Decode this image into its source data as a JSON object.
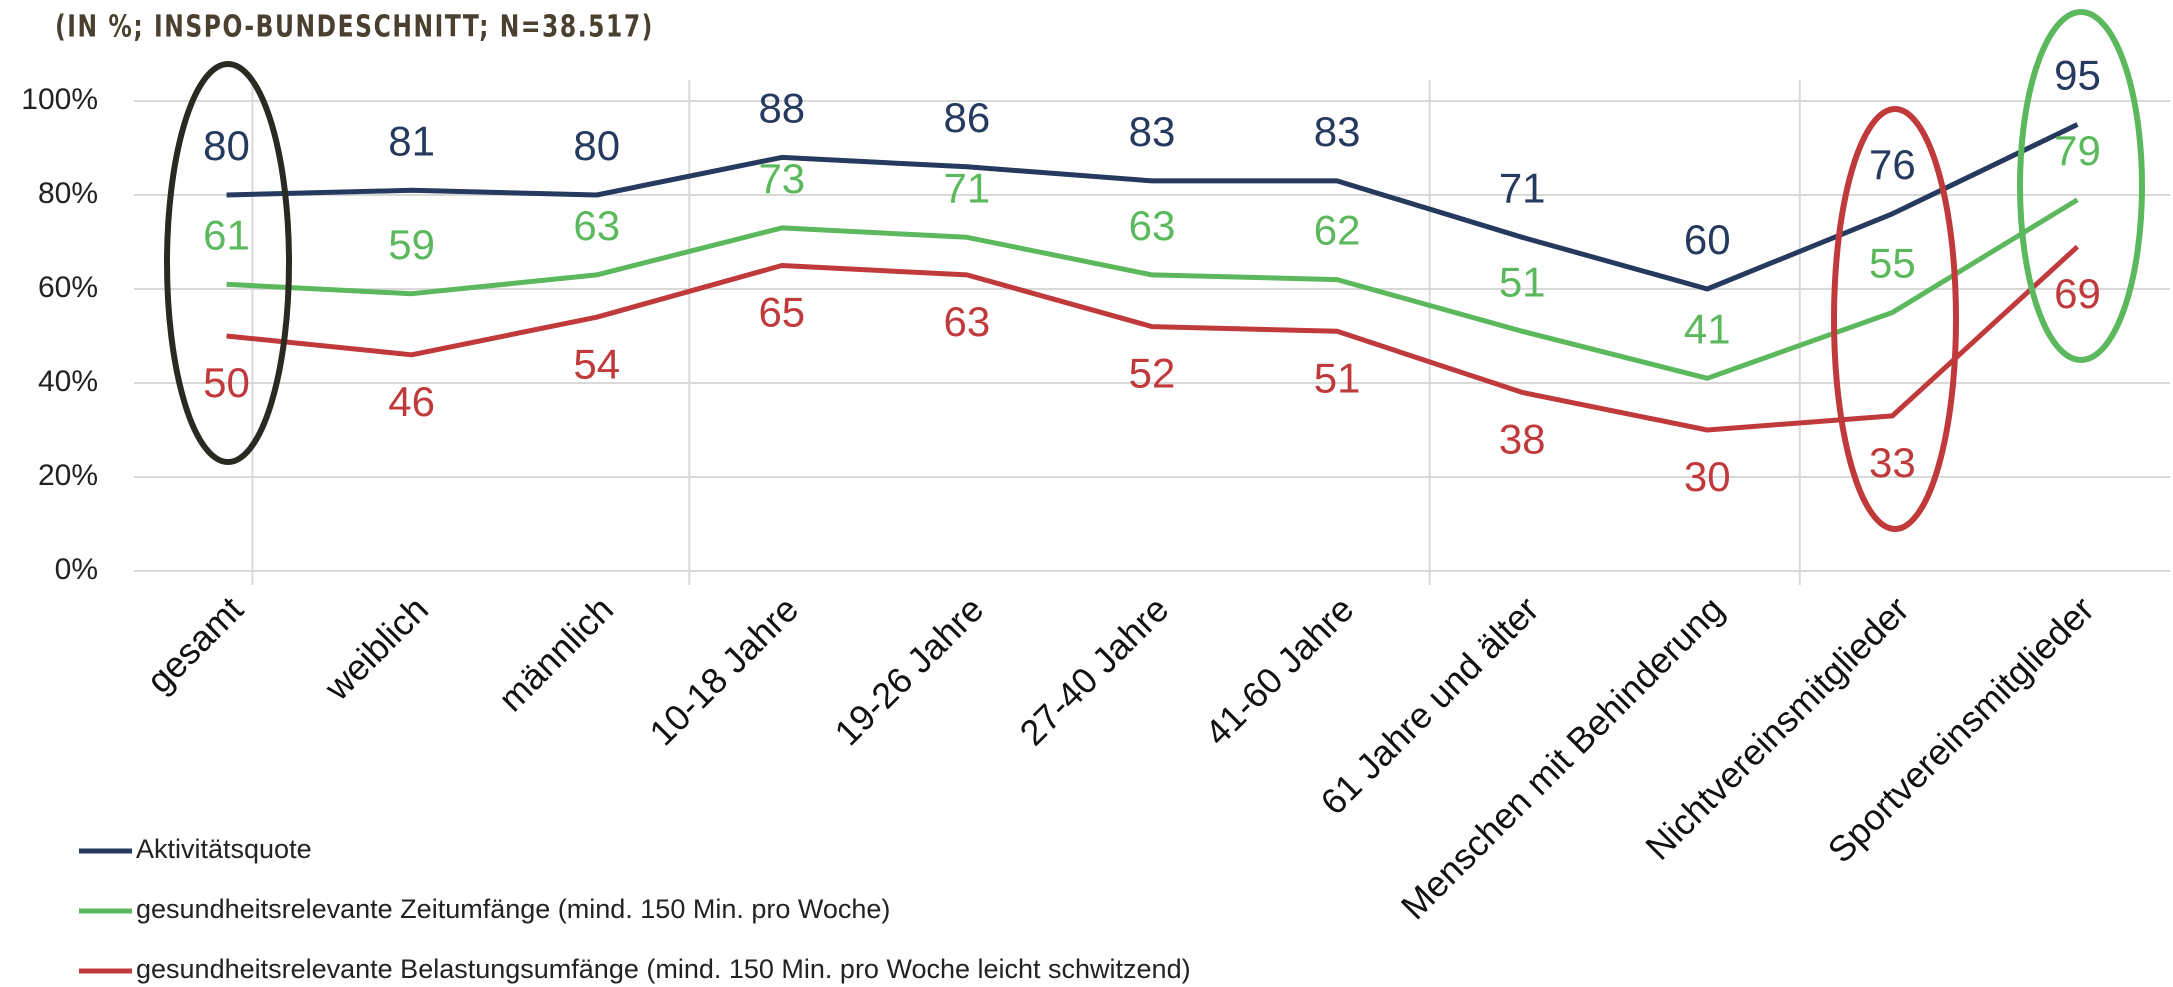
{
  "chart_data": {
    "type": "line",
    "title": "(IN %; INSPO-BUNDESCHNITT; N=38.517)",
    "categories": [
      "gesamt",
      "weiblich",
      "männlich",
      "10-18 Jahre",
      "19-26 Jahre",
      "27-40 Jahre",
      "41-60 Jahre",
      "61 Jahre und älter",
      "Menschen mit Behinderung",
      "Nichtvereinsmitglieder",
      "Sportvereinsmitglieder"
    ],
    "series": [
      {
        "name": "Aktivitätsquote",
        "color": "#253a5e",
        "values": [
          80,
          81,
          80,
          88,
          86,
          83,
          83,
          71,
          60,
          76,
          95
        ]
      },
      {
        "name": "gesundheitsrelevante Zeitumfänge (mind. 150 Min. pro Woche)",
        "color": "#5cb85c",
        "values": [
          61,
          59,
          63,
          73,
          71,
          63,
          62,
          51,
          41,
          55,
          79
        ]
      },
      {
        "name": "gesundheitsrelevante Belastungsumfänge (mind. 150 Min. pro Woche leicht schwitzend)",
        "color": "#c0393b",
        "values": [
          50,
          46,
          54,
          65,
          63,
          52,
          51,
          38,
          30,
          33,
          69
        ]
      }
    ],
    "ylim": [
      0,
      100
    ],
    "yticks": [
      {
        "value": 0,
        "label": "0%"
      },
      {
        "value": 20,
        "label": "20%"
      },
      {
        "value": 40,
        "label": "40%"
      },
      {
        "value": 60,
        "label": "60%"
      },
      {
        "value": 80,
        "label": "80%"
      },
      {
        "value": 100,
        "label": "100%"
      }
    ],
    "grid": true
  }
}
